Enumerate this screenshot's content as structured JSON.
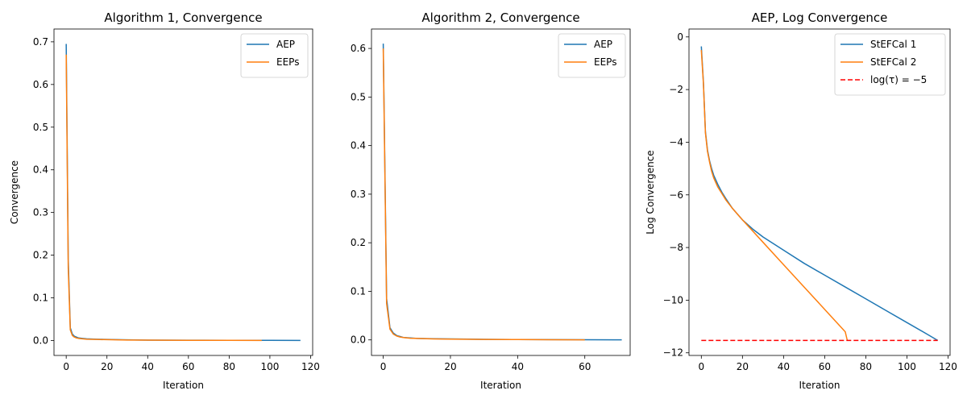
{
  "chart_data": [
    {
      "type": "line",
      "title": "Algorithm 1, Convergence",
      "xlabel": "Iteration",
      "ylabel": "Convergence",
      "xlim": [
        -6,
        121
      ],
      "ylim": [
        -0.035,
        0.73
      ],
      "xticks": [
        0,
        20,
        40,
        60,
        80,
        100,
        120
      ],
      "xtick_labels": [
        "0",
        "20",
        "40",
        "60",
        "80",
        "100",
        "120"
      ],
      "yticks": [
        0,
        0.1,
        0.2,
        0.3,
        0.4,
        0.5,
        0.6,
        0.7
      ],
      "ytick_labels": [
        "0.0",
        "0.1",
        "0.2",
        "0.3",
        "0.4",
        "0.5",
        "0.6",
        "0.7"
      ],
      "grid": false,
      "legend": "top-right",
      "series": [
        {
          "name": "AEP",
          "color": "#1f77b4",
          "x": [
            0,
            1,
            2,
            3,
            4,
            5,
            6,
            8,
            10,
            15,
            20,
            30,
            40,
            60,
            80,
            100,
            115
          ],
          "y": [
            0.695,
            0.19,
            0.03,
            0.015,
            0.01,
            0.008,
            0.006,
            0.005,
            0.004,
            0.003,
            0.0025,
            0.0015,
            0.001,
            0.0007,
            0.0005,
            0.0003,
            0.0002
          ]
        },
        {
          "name": "EEPs",
          "color": "#ff7f0e",
          "x": [
            0,
            1,
            2,
            3,
            4,
            5,
            6,
            8,
            10,
            15,
            20,
            30,
            40,
            60,
            80,
            96
          ],
          "y": [
            0.67,
            0.17,
            0.025,
            0.012,
            0.008,
            0.006,
            0.005,
            0.004,
            0.003,
            0.0025,
            0.002,
            0.0012,
            0.0008,
            0.0005,
            0.0003,
            0.0002
          ]
        }
      ]
    },
    {
      "type": "line",
      "title": "Algorithm 2, Convergence",
      "xlabel": "Iteration",
      "ylabel": "",
      "xlim": [
        -3.5,
        73.5
      ],
      "ylim": [
        -0.032,
        0.64
      ],
      "xticks": [
        0,
        20,
        40,
        60
      ],
      "xtick_labels": [
        "0",
        "20",
        "40",
        "60"
      ],
      "yticks": [
        0,
        0.1,
        0.2,
        0.3,
        0.4,
        0.5,
        0.6
      ],
      "ytick_labels": [
        "0.0",
        "0.1",
        "0.2",
        "0.3",
        "0.4",
        "0.5",
        "0.6"
      ],
      "grid": false,
      "legend": "top-right",
      "series": [
        {
          "name": "AEP",
          "color": "#1f77b4",
          "x": [
            0,
            1,
            2,
            3,
            4,
            5,
            6,
            8,
            10,
            15,
            20,
            30,
            40,
            50,
            60,
            71
          ],
          "y": [
            0.61,
            0.085,
            0.025,
            0.014,
            0.009,
            0.007,
            0.005,
            0.004,
            0.003,
            0.0025,
            0.002,
            0.0012,
            0.0008,
            0.0005,
            0.0003,
            0.0002
          ]
        },
        {
          "name": "EEPs",
          "color": "#ff7f0e",
          "x": [
            0,
            1,
            2,
            3,
            4,
            5,
            6,
            8,
            10,
            15,
            20,
            30,
            40,
            50,
            60
          ],
          "y": [
            0.6,
            0.075,
            0.022,
            0.012,
            0.008,
            0.006,
            0.005,
            0.0035,
            0.003,
            0.002,
            0.0015,
            0.001,
            0.0007,
            0.0004,
            0.0002
          ]
        }
      ]
    },
    {
      "type": "line",
      "title": "AEP, Log Convergence",
      "xlabel": "Iteration",
      "ylabel": "Log Convergence",
      "xlim": [
        -6,
        121
      ],
      "ylim": [
        -12.1,
        0.3
      ],
      "xticks": [
        0,
        20,
        40,
        60,
        80,
        100,
        120
      ],
      "xtick_labels": [
        "0",
        "20",
        "40",
        "60",
        "80",
        "100",
        "120"
      ],
      "yticks": [
        0,
        -2,
        -4,
        -6,
        -8,
        -10,
        -12
      ],
      "ytick_labels": [
        "0",
        "−2",
        "−4",
        "−6",
        "−8",
        "−10",
        "−12"
      ],
      "grid": false,
      "legend": "top-right",
      "series": [
        {
          "name": "StEFCal 1",
          "color": "#1f77b4",
          "dash": "solid",
          "x": [
            0,
            1,
            2,
            3,
            4,
            5,
            6,
            8,
            10,
            12,
            15,
            20,
            25,
            30,
            40,
            50,
            60,
            70,
            80,
            90,
            100,
            110,
            115
          ],
          "y": [
            -0.36,
            -1.7,
            -3.6,
            -4.3,
            -4.7,
            -5.0,
            -5.25,
            -5.6,
            -5.9,
            -6.15,
            -6.5,
            -6.95,
            -7.3,
            -7.6,
            -8.1,
            -8.6,
            -9.05,
            -9.5,
            -9.95,
            -10.4,
            -10.85,
            -11.3,
            -11.53
          ]
        },
        {
          "name": "StEFCal 2",
          "color": "#ff7f0e",
          "dash": "solid",
          "x": [
            0,
            1,
            2,
            3,
            4,
            5,
            6,
            8,
            10,
            12,
            15,
            20,
            30,
            40,
            50,
            60,
            70,
            71
          ],
          "y": [
            -0.5,
            -1.75,
            -3.65,
            -4.35,
            -4.75,
            -5.1,
            -5.35,
            -5.7,
            -5.95,
            -6.2,
            -6.5,
            -6.95,
            -7.8,
            -8.65,
            -9.5,
            -10.35,
            -11.2,
            -11.53
          ]
        },
        {
          "name": "log(τ) = −5",
          "color": "#ff0000",
          "dash": "dashed",
          "x": [
            0,
            115
          ],
          "y": [
            -11.53,
            -11.53
          ]
        }
      ]
    }
  ]
}
